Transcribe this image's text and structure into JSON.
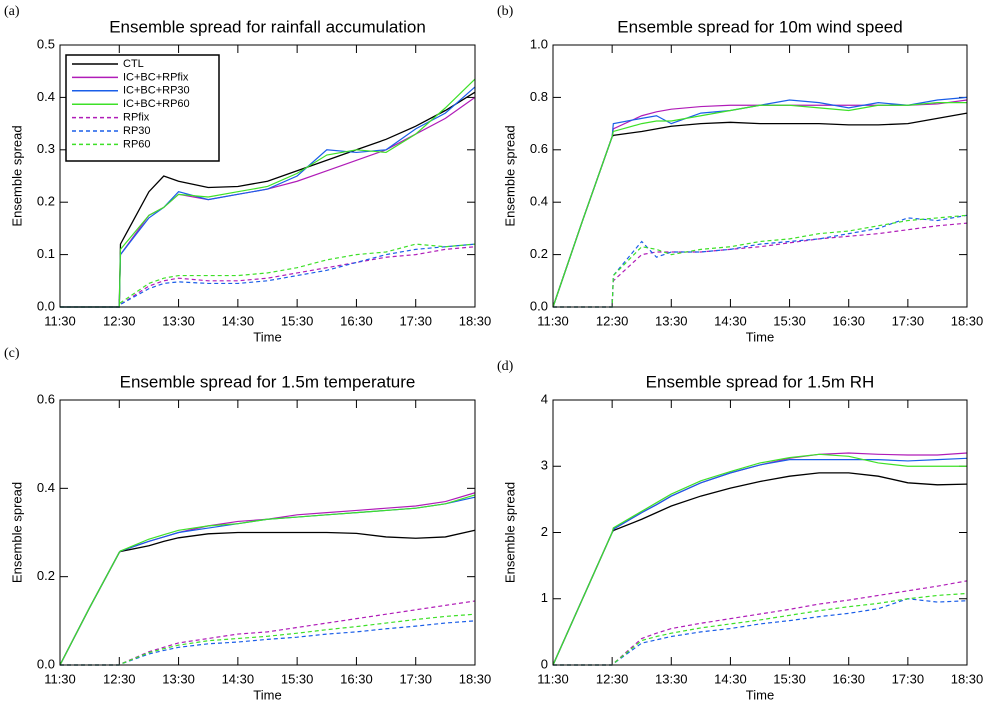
{
  "chart_data": [
    {
      "type": "line",
      "panel_label": "(a)",
      "title": "Ensemble spread for rainfall accumulation",
      "xlabel": "Time",
      "ylabel": "Ensemble spread",
      "legend": "upper left",
      "x": [
        11.5,
        12.0,
        12.5,
        12.52,
        13.0,
        13.25,
        13.5,
        14.0,
        14.5,
        15.0,
        15.5,
        16.0,
        16.5,
        17.0,
        17.5,
        18.0,
        18.5
      ],
      "xlim": [
        11.5,
        18.5
      ],
      "xticks": [
        {
          "value": 11.5,
          "label": "11:30"
        },
        {
          "value": 12.5,
          "label": "12:30"
        },
        {
          "value": 13.5,
          "label": "13:30"
        },
        {
          "value": 14.5,
          "label": "14:30"
        },
        {
          "value": 15.5,
          "label": "15:30"
        },
        {
          "value": 16.5,
          "label": "16:30"
        },
        {
          "value": 17.5,
          "label": "17:30"
        },
        {
          "value": 18.5,
          "label": "18:30"
        }
      ],
      "ylim": [
        0,
        0.5
      ],
      "yticks": [
        {
          "value": 0,
          "label": "0.0"
        },
        0.1,
        0.2,
        0.3,
        0.4,
        0.5
      ],
      "series": [
        {
          "name": "CTL",
          "color": "#000000",
          "dashed": false,
          "values": [
            0,
            0,
            0,
            0.12,
            0.22,
            0.25,
            0.24,
            0.228,
            0.23,
            0.24,
            0.26,
            0.28,
            0.3,
            0.32,
            0.345,
            0.375,
            0.41
          ]
        },
        {
          "name": "IC+BC+RPfix",
          "color": "#b01cb8",
          "dashed": false,
          "values": [
            0,
            0,
            0,
            0.1,
            0.175,
            0.19,
            0.215,
            0.205,
            0.215,
            0.225,
            0.24,
            0.26,
            0.28,
            0.3,
            0.33,
            0.36,
            0.4
          ]
        },
        {
          "name": "IC+BC+RP30",
          "color": "#1a5ee8",
          "dashed": false,
          "values": [
            0,
            0,
            0,
            0.1,
            0.17,
            0.19,
            0.22,
            0.205,
            0.215,
            0.225,
            0.25,
            0.3,
            0.295,
            0.3,
            0.34,
            0.37,
            0.42
          ]
        },
        {
          "name": "IC+BC+RP60",
          "color": "#3ee028",
          "dashed": false,
          "values": [
            0,
            0,
            0,
            0.11,
            0.175,
            0.19,
            0.215,
            0.21,
            0.22,
            0.23,
            0.255,
            0.29,
            0.3,
            0.295,
            0.33,
            0.38,
            0.435
          ]
        },
        {
          "name": "RPfix",
          "color": "#b01cb8",
          "dashed": true,
          "values": [
            0,
            0,
            0,
            0.005,
            0.04,
            0.05,
            0.055,
            0.05,
            0.05,
            0.055,
            0.065,
            0.075,
            0.085,
            0.095,
            0.1,
            0.11,
            0.115
          ]
        },
        {
          "name": "RP30",
          "color": "#1a5ee8",
          "dashed": true,
          "values": [
            0,
            0,
            0,
            0.005,
            0.035,
            0.045,
            0.048,
            0.045,
            0.045,
            0.05,
            0.06,
            0.07,
            0.085,
            0.1,
            0.11,
            0.115,
            0.12
          ]
        },
        {
          "name": "RP60",
          "color": "#3ee028",
          "dashed": true,
          "values": [
            0,
            0,
            0,
            0.008,
            0.045,
            0.055,
            0.06,
            0.06,
            0.06,
            0.065,
            0.075,
            0.09,
            0.1,
            0.105,
            0.12,
            0.115,
            0.12
          ]
        }
      ]
    },
    {
      "type": "line",
      "panel_label": "(b)",
      "title": "Ensemble spread for 10m wind speed",
      "xlabel": "Time",
      "ylabel": "Ensemble spread",
      "x": [
        11.5,
        12.0,
        12.5,
        12.52,
        13.0,
        13.25,
        13.5,
        14.0,
        14.5,
        15.0,
        15.5,
        16.0,
        16.5,
        17.0,
        17.5,
        18.0,
        18.5
      ],
      "xlim": [
        11.5,
        18.5
      ],
      "xticks": [
        {
          "value": 11.5,
          "label": "11:30"
        },
        {
          "value": 12.5,
          "label": "12:30"
        },
        {
          "value": 13.5,
          "label": "13:30"
        },
        {
          "value": 14.5,
          "label": "14:30"
        },
        {
          "value": 15.5,
          "label": "15:30"
        },
        {
          "value": 16.5,
          "label": "16:30"
        },
        {
          "value": 17.5,
          "label": "17:30"
        },
        {
          "value": 18.5,
          "label": "18:30"
        }
      ],
      "ylim": [
        0,
        1
      ],
      "yticks": [
        {
          "value": 0,
          "label": "0.0"
        },
        0.2,
        0.4,
        0.6,
        0.8,
        {
          "value": 1,
          "label": "1.0"
        }
      ],
      "series": [
        {
          "color": "#000000",
          "dashed": false,
          "values": [
            0,
            0.33,
            0.65,
            0.655,
            0.67,
            0.68,
            0.69,
            0.7,
            0.705,
            0.7,
            0.7,
            0.7,
            0.695,
            0.695,
            0.7,
            0.72,
            0.74
          ]
        },
        {
          "color": "#b01cb8",
          "dashed": false,
          "values": [
            0,
            0.33,
            0.65,
            0.68,
            0.73,
            0.745,
            0.755,
            0.765,
            0.77,
            0.77,
            0.77,
            0.77,
            0.77,
            0.77,
            0.77,
            0.775,
            0.79
          ]
        },
        {
          "color": "#1a5ee8",
          "dashed": false,
          "values": [
            0,
            0.33,
            0.65,
            0.7,
            0.72,
            0.73,
            0.7,
            0.74,
            0.75,
            0.77,
            0.79,
            0.78,
            0.76,
            0.78,
            0.77,
            0.79,
            0.8
          ]
        },
        {
          "color": "#3ee028",
          "dashed": false,
          "values": [
            0,
            0.33,
            0.65,
            0.67,
            0.7,
            0.71,
            0.71,
            0.73,
            0.75,
            0.77,
            0.77,
            0.76,
            0.75,
            0.77,
            0.77,
            0.78,
            0.78
          ]
        },
        {
          "color": "#b01cb8",
          "dashed": true,
          "values": [
            0,
            0,
            0,
            0.1,
            0.2,
            0.21,
            0.21,
            0.21,
            0.22,
            0.23,
            0.245,
            0.26,
            0.27,
            0.28,
            0.295,
            0.31,
            0.32
          ]
        },
        {
          "color": "#1a5ee8",
          "dashed": true,
          "values": [
            0,
            0,
            0,
            0.12,
            0.25,
            0.19,
            0.21,
            0.21,
            0.22,
            0.24,
            0.25,
            0.26,
            0.28,
            0.3,
            0.34,
            0.33,
            0.35
          ]
        },
        {
          "color": "#3ee028",
          "dashed": true,
          "values": [
            0,
            0,
            0,
            0.12,
            0.23,
            0.22,
            0.2,
            0.22,
            0.23,
            0.25,
            0.26,
            0.28,
            0.29,
            0.31,
            0.33,
            0.34,
            0.35
          ]
        }
      ]
    },
    {
      "type": "line",
      "panel_label": "(c)",
      "title": "Ensemble spread for 1.5m temperature",
      "xlabel": "Time",
      "ylabel": "Ensemble spread",
      "x": [
        11.5,
        12.0,
        12.5,
        12.52,
        13.0,
        13.25,
        13.5,
        14.0,
        14.5,
        15.0,
        15.5,
        16.0,
        16.5,
        17.0,
        17.5,
        18.0,
        18.5
      ],
      "xlim": [
        11.5,
        18.5
      ],
      "xticks": [
        {
          "value": 11.5,
          "label": "11:30"
        },
        {
          "value": 12.5,
          "label": "12:30"
        },
        {
          "value": 13.5,
          "label": "13:30"
        },
        {
          "value": 14.5,
          "label": "14:30"
        },
        {
          "value": 15.5,
          "label": "15:30"
        },
        {
          "value": 16.5,
          "label": "16:30"
        },
        {
          "value": 17.5,
          "label": "17:30"
        },
        {
          "value": 18.5,
          "label": "18:30"
        }
      ],
      "ylim": [
        0,
        0.6
      ],
      "yticks": [
        {
          "value": 0,
          "label": "0.0"
        },
        0.2,
        0.4,
        0.6
      ],
      "series": [
        {
          "color": "#000000",
          "dashed": false,
          "values": [
            0,
            0.13,
            0.255,
            0.257,
            0.27,
            0.28,
            0.288,
            0.297,
            0.3,
            0.3,
            0.3,
            0.3,
            0.298,
            0.29,
            0.287,
            0.29,
            0.305
          ]
        },
        {
          "color": "#b01cb8",
          "dashed": false,
          "values": [
            0,
            0.13,
            0.255,
            0.258,
            0.28,
            0.29,
            0.3,
            0.315,
            0.325,
            0.33,
            0.34,
            0.345,
            0.35,
            0.355,
            0.36,
            0.37,
            0.39
          ]
        },
        {
          "color": "#1a5ee8",
          "dashed": false,
          "values": [
            0,
            0.13,
            0.255,
            0.258,
            0.28,
            0.29,
            0.3,
            0.31,
            0.32,
            0.33,
            0.335,
            0.34,
            0.345,
            0.35,
            0.355,
            0.365,
            0.38
          ]
        },
        {
          "color": "#3ee028",
          "dashed": false,
          "values": [
            0,
            0.13,
            0.255,
            0.258,
            0.285,
            0.295,
            0.305,
            0.315,
            0.32,
            0.33,
            0.335,
            0.34,
            0.345,
            0.35,
            0.355,
            0.365,
            0.385
          ]
        },
        {
          "color": "#b01cb8",
          "dashed": true,
          "values": [
            0,
            0,
            0,
            0.002,
            0.03,
            0.04,
            0.05,
            0.06,
            0.07,
            0.075,
            0.085,
            0.095,
            0.105,
            0.115,
            0.125,
            0.135,
            0.145
          ]
        },
        {
          "color": "#1a5ee8",
          "dashed": true,
          "values": [
            0,
            0,
            0,
            0.002,
            0.025,
            0.033,
            0.04,
            0.048,
            0.052,
            0.058,
            0.063,
            0.07,
            0.075,
            0.082,
            0.088,
            0.095,
            0.1
          ]
        },
        {
          "color": "#3ee028",
          "dashed": true,
          "values": [
            0,
            0,
            0,
            0.002,
            0.028,
            0.037,
            0.045,
            0.055,
            0.06,
            0.065,
            0.072,
            0.08,
            0.087,
            0.095,
            0.103,
            0.11,
            0.115
          ]
        }
      ]
    },
    {
      "type": "line",
      "panel_label": "(d)",
      "title": "Ensemble spread for 1.5m RH",
      "xlabel": "Time",
      "ylabel": "Ensemble spread",
      "x": [
        11.5,
        12.0,
        12.5,
        12.52,
        13.0,
        13.25,
        13.5,
        14.0,
        14.5,
        15.0,
        15.5,
        16.0,
        16.5,
        17.0,
        17.5,
        18.0,
        18.5
      ],
      "xlim": [
        11.5,
        18.5
      ],
      "xticks": [
        {
          "value": 11.5,
          "label": "11:30"
        },
        {
          "value": 12.5,
          "label": "12:30"
        },
        {
          "value": 13.5,
          "label": "13:30"
        },
        {
          "value": 14.5,
          "label": "14:30"
        },
        {
          "value": 15.5,
          "label": "15:30"
        },
        {
          "value": 16.5,
          "label": "16:30"
        },
        {
          "value": 17.5,
          "label": "17:30"
        },
        {
          "value": 18.5,
          "label": "18:30"
        }
      ],
      "ylim": [
        0,
        4
      ],
      "yticks": [
        0,
        1,
        2,
        3,
        4
      ],
      "series": [
        {
          "color": "#000000",
          "dashed": false,
          "values": [
            0,
            1.0,
            2.0,
            2.03,
            2.2,
            2.3,
            2.4,
            2.55,
            2.67,
            2.77,
            2.85,
            2.9,
            2.9,
            2.85,
            2.75,
            2.72,
            2.73
          ]
        },
        {
          "color": "#b01cb8",
          "dashed": false,
          "values": [
            0,
            1.0,
            2.0,
            2.05,
            2.3,
            2.42,
            2.55,
            2.75,
            2.9,
            3.02,
            3.12,
            3.18,
            3.2,
            3.18,
            3.17,
            3.17,
            3.2
          ]
        },
        {
          "color": "#1a5ee8",
          "dashed": false,
          "values": [
            0,
            1.0,
            2.0,
            2.05,
            2.3,
            2.42,
            2.55,
            2.75,
            2.9,
            3.02,
            3.1,
            3.1,
            3.1,
            3.1,
            3.08,
            3.1,
            3.12
          ]
        },
        {
          "color": "#3ee028",
          "dashed": false,
          "values": [
            0,
            1.0,
            2.0,
            2.07,
            2.32,
            2.45,
            2.58,
            2.78,
            2.92,
            3.05,
            3.13,
            3.18,
            3.15,
            3.05,
            3.0,
            3.0,
            3.0
          ]
        },
        {
          "color": "#b01cb8",
          "dashed": true,
          "values": [
            0,
            0,
            0,
            0.02,
            0.4,
            0.48,
            0.55,
            0.63,
            0.7,
            0.77,
            0.84,
            0.92,
            0.98,
            1.05,
            1.12,
            1.19,
            1.27
          ]
        },
        {
          "color": "#1a5ee8",
          "dashed": true,
          "values": [
            0,
            0,
            0,
            0.02,
            0.33,
            0.38,
            0.43,
            0.5,
            0.55,
            0.62,
            0.67,
            0.73,
            0.78,
            0.85,
            1.0,
            0.95,
            0.97
          ]
        },
        {
          "color": "#3ee028",
          "dashed": true,
          "values": [
            0,
            0,
            0,
            0.02,
            0.37,
            0.43,
            0.48,
            0.56,
            0.62,
            0.68,
            0.75,
            0.82,
            0.88,
            0.93,
            1.0,
            1.05,
            1.08
          ]
        }
      ]
    }
  ]
}
